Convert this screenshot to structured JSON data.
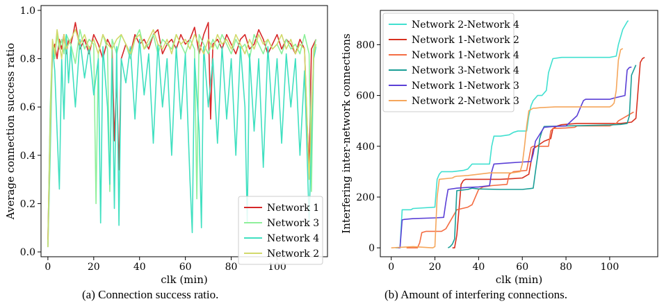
{
  "captions": {
    "a": "(a) Connection success ratio.",
    "b": "(b) Amount of interfering connections."
  },
  "chart_data": [
    {
      "type": "line",
      "title": "",
      "xlabel": "clk (min)",
      "ylabel": "Average connection success ratio",
      "xlim": [
        -3,
        122
      ],
      "ylim": [
        -0.02,
        1.02
      ],
      "xticks": [
        0,
        20,
        40,
        60,
        80,
        100
      ],
      "yticks": [
        0.0,
        0.2,
        0.4,
        0.6,
        0.8,
        1.0
      ],
      "legend_position": "bottom-right",
      "grid": false,
      "series": [
        {
          "name": "Network 1",
          "color": "#d62728",
          "x": [
            0,
            1,
            2,
            3,
            4,
            5,
            6,
            7,
            8,
            9,
            10,
            11,
            12,
            14,
            16,
            18,
            20,
            22,
            24,
            26,
            28,
            29,
            30,
            31,
            32,
            34,
            36,
            38,
            40,
            42,
            44,
            46,
            48,
            50,
            52,
            54,
            56,
            58,
            60,
            62,
            64,
            66,
            68,
            70,
            71,
            72,
            74,
            76,
            78,
            80,
            82,
            84,
            86,
            88,
            90,
            92,
            94,
            96,
            98,
            100,
            102,
            104,
            106,
            108,
            110,
            112,
            113,
            114,
            115,
            116,
            117
          ],
          "y": [
            0.05,
            0.55,
            0.82,
            0.86,
            0.8,
            0.88,
            0.84,
            0.9,
            0.82,
            0.88,
            0.86,
            0.9,
            0.95,
            0.84,
            0.88,
            0.82,
            0.9,
            0.86,
            0.8,
            0.88,
            0.84,
            0.46,
            0.72,
            0.34,
            0.8,
            0.86,
            0.82,
            0.9,
            0.86,
            0.88,
            0.84,
            0.9,
            0.92,
            0.82,
            0.86,
            0.88,
            0.84,
            0.9,
            0.86,
            0.88,
            0.93,
            0.82,
            0.9,
            0.95,
            0.55,
            0.86,
            0.88,
            0.84,
            0.9,
            0.86,
            0.82,
            0.88,
            0.9,
            0.84,
            0.86,
            0.92,
            0.88,
            0.82,
            0.86,
            0.9,
            0.84,
            0.88,
            0.86,
            0.82,
            0.88,
            0.84,
            0.55,
            0.35,
            0.84,
            0.86,
            0.88
          ]
        },
        {
          "name": "Network 3",
          "color": "#8ef09a",
          "x": [
            0,
            1,
            2,
            3,
            4,
            5,
            6,
            7,
            8,
            10,
            12,
            14,
            16,
            18,
            20,
            21,
            22,
            24,
            26,
            27,
            28,
            30,
            32,
            34,
            36,
            38,
            40,
            42,
            44,
            46,
            48,
            50,
            52,
            54,
            56,
            58,
            60,
            62,
            64,
            65,
            66,
            68,
            70,
            72,
            74,
            76,
            78,
            80,
            82,
            84,
            86,
            88,
            90,
            92,
            94,
            96,
            98,
            100,
            102,
            104,
            106,
            108,
            110,
            112,
            114,
            115,
            116,
            117
          ],
          "y": [
            0.03,
            0.6,
            0.86,
            0.8,
            0.9,
            0.84,
            0.88,
            0.82,
            0.9,
            0.86,
            0.78,
            0.92,
            0.84,
            0.88,
            0.86,
            0.2,
            0.82,
            0.9,
            0.84,
            0.25,
            0.88,
            0.82,
            0.9,
            0.86,
            0.8,
            0.88,
            0.92,
            0.84,
            0.86,
            0.9,
            0.82,
            0.88,
            0.86,
            0.84,
            0.9,
            0.86,
            0.82,
            0.88,
            0.84,
            0.22,
            0.9,
            0.86,
            0.82,
            0.88,
            0.84,
            0.9,
            0.86,
            0.82,
            0.88,
            0.84,
            0.86,
            0.8,
            0.9,
            0.86,
            0.82,
            0.88,
            0.84,
            0.86,
            0.82,
            0.88,
            0.84,
            0.86,
            0.82,
            0.9,
            0.82,
            0.25,
            0.84,
            0.88
          ]
        },
        {
          "name": "Network 4",
          "color": "#40e0c0",
          "x": [
            0,
            1,
            2,
            3,
            4,
            5,
            6,
            7,
            8,
            9,
            10,
            12,
            14,
            16,
            18,
            20,
            22,
            23,
            24,
            26,
            27,
            28,
            29,
            30,
            31,
            32,
            34,
            36,
            38,
            40,
            42,
            44,
            46,
            48,
            50,
            52,
            54,
            56,
            58,
            60,
            62,
            63,
            64,
            66,
            67,
            68,
            70,
            72,
            74,
            76,
            78,
            80,
            82,
            84,
            86,
            87,
            88,
            90,
            92,
            94,
            96,
            98,
            100,
            102,
            104,
            106,
            108,
            110,
            112,
            114,
            116,
            117
          ],
          "y": [
            0.02,
            0.4,
            0.85,
            0.75,
            0.5,
            0.26,
            0.8,
            0.55,
            0.9,
            0.7,
            0.85,
            0.6,
            0.88,
            0.72,
            0.85,
            0.65,
            0.8,
            0.12,
            0.85,
            0.6,
            0.28,
            0.8,
            0.18,
            0.85,
            0.11,
            0.8,
            0.7,
            0.85,
            0.55,
            0.88,
            0.65,
            0.82,
            0.45,
            0.86,
            0.6,
            0.8,
            0.4,
            0.85,
            0.55,
            0.82,
            0.3,
            0.08,
            0.8,
            0.5,
            0.1,
            0.85,
            0.6,
            0.8,
            0.45,
            0.85,
            0.55,
            0.8,
            0.4,
            0.85,
            0.6,
            0.12,
            0.82,
            0.5,
            0.8,
            0.35,
            0.85,
            0.55,
            0.8,
            0.45,
            0.82,
            0.6,
            0.8,
            0.4,
            0.75,
            0.13,
            0.8,
            0.85
          ]
        },
        {
          "name": "Network 2",
          "color": "#d2d96b",
          "x": [
            0,
            1,
            2,
            3,
            4,
            5,
            6,
            7,
            8,
            10,
            12,
            14,
            16,
            18,
            20,
            22,
            24,
            26,
            28,
            30,
            32,
            34,
            36,
            38,
            40,
            42,
            44,
            46,
            48,
            50,
            52,
            54,
            56,
            58,
            60,
            62,
            64,
            66,
            68,
            70,
            72,
            74,
            76,
            78,
            80,
            82,
            84,
            86,
            88,
            90,
            92,
            94,
            96,
            98,
            100,
            102,
            104,
            106,
            108,
            110,
            112,
            114,
            116,
            117
          ],
          "y": [
            0.02,
            0.5,
            0.88,
            0.82,
            0.92,
            0.86,
            0.8,
            0.9,
            0.84,
            0.88,
            0.92,
            0.86,
            0.9,
            0.84,
            0.88,
            0.82,
            0.9,
            0.86,
            0.84,
            0.88,
            0.9,
            0.86,
            0.82,
            0.88,
            0.9,
            0.84,
            0.88,
            0.92,
            0.86,
            0.84,
            0.88,
            0.82,
            0.9,
            0.86,
            0.88,
            0.84,
            0.9,
            0.86,
            0.82,
            0.88,
            0.84,
            0.9,
            0.86,
            0.88,
            0.84,
            0.9,
            0.86,
            0.82,
            0.88,
            0.84,
            0.9,
            0.86,
            0.88,
            0.84,
            0.86,
            0.9,
            0.84,
            0.88,
            0.82,
            0.86,
            0.84,
            0.3,
            0.82,
            0.86
          ]
        }
      ]
    },
    {
      "type": "line",
      "title": "",
      "xlabel": "clk (min)",
      "ylabel": "Interfering inter-network connections",
      "xlim": [
        -5,
        122
      ],
      "ylim": [
        -35,
        935
      ],
      "xticks": [
        0,
        20,
        40,
        60,
        80,
        100
      ],
      "yticks": [
        0,
        200,
        400,
        600,
        800
      ],
      "legend_position": "top-left",
      "grid": false,
      "series": [
        {
          "name": "Network 2-Network 4",
          "color": "#40e0d0",
          "x": [
            2,
            4,
            5,
            9,
            10,
            20,
            21,
            22,
            23,
            28,
            33,
            35,
            37,
            45,
            46,
            47,
            50,
            54,
            55,
            56,
            58,
            62,
            63,
            64,
            65,
            66,
            67,
            69,
            71,
            72,
            74,
            78,
            85,
            90,
            100,
            103,
            104,
            106,
            108,
            108.5
          ],
          "y": [
            0,
            0,
            150,
            150,
            155,
            160,
            270,
            290,
            300,
            300,
            305,
            310,
            330,
            330,
            400,
            440,
            440,
            445,
            450,
            455,
            460,
            460,
            520,
            560,
            580,
            590,
            600,
            600,
            620,
            690,
            745,
            750,
            750,
            750,
            750,
            755,
            800,
            860,
            890,
            895
          ]
        },
        {
          "name": "Network 1-Network 2",
          "color": "#d7301f",
          "x": [
            28,
            29,
            30,
            31,
            32,
            33,
            34,
            36,
            45,
            50,
            55,
            60,
            63,
            64,
            65,
            70,
            73,
            74,
            76,
            78,
            85,
            95,
            100,
            105,
            110,
            112,
            113,
            114,
            115,
            116
          ],
          "y": [
            0,
            0,
            50,
            150,
            250,
            265,
            270,
            270,
            270,
            270,
            272,
            275,
            290,
            340,
            390,
            420,
            430,
            470,
            480,
            485,
            490,
            490,
            490,
            490,
            495,
            510,
            620,
            730,
            745,
            750
          ]
        },
        {
          "name": "Network 1-Network 4",
          "color": "#f46d43",
          "x": [
            7,
            8,
            12,
            13,
            14,
            16,
            23,
            24,
            25,
            30,
            35,
            36,
            37,
            40,
            42,
            46,
            53,
            54,
            56,
            62,
            64,
            65,
            72,
            73,
            74,
            80,
            84,
            85,
            100,
            103,
            104,
            108,
            110,
            111
          ],
          "y": [
            0,
            0,
            0,
            20,
            60,
            65,
            65,
            70,
            75,
            150,
            160,
            165,
            170,
            230,
            240,
            245,
            250,
            290,
            300,
            305,
            395,
            400,
            400,
            460,
            470,
            472,
            475,
            480,
            480,
            490,
            500,
            520,
            530,
            535
          ]
        },
        {
          "name": "Network 3-Network 4",
          "color": "#1a9e96",
          "x": [
            26,
            27,
            28,
            29,
            30,
            35,
            37,
            40,
            50,
            56,
            60,
            65,
            66,
            67,
            68,
            69,
            70,
            80,
            90,
            100,
            105,
            108,
            109,
            110,
            112
          ],
          "y": [
            0,
            5,
            15,
            35,
            225,
            230,
            235,
            232,
            230,
            230,
            230,
            235,
            300,
            360,
            430,
            460,
            478,
            480,
            482,
            484,
            486,
            490,
            520,
            680,
            720
          ]
        },
        {
          "name": "Network 1-Network 3",
          "color": "#5a3fd6",
          "x": [
            3,
            4,
            5,
            6,
            10,
            20,
            24,
            25,
            26,
            30,
            35,
            40,
            45,
            46,
            47,
            50,
            55,
            60,
            64,
            65,
            66,
            70,
            74,
            80,
            85,
            87,
            88,
            89,
            95,
            100,
            102,
            107,
            108,
            109,
            110
          ],
          "y": [
            0,
            0,
            110,
            112,
            115,
            118,
            120,
            180,
            230,
            235,
            238,
            240,
            245,
            300,
            330,
            332,
            335,
            338,
            340,
            370,
            420,
            475,
            478,
            480,
            520,
            560,
            580,
            585,
            585,
            585,
            590,
            600,
            700,
            710,
            712
          ]
        },
        {
          "name": "Network 2-Network 3",
          "color": "#f5a65b",
          "x": [
            0,
            10,
            19,
            20,
            21,
            22,
            28,
            29,
            30,
            35,
            40,
            45,
            55,
            59,
            60,
            61,
            62,
            63,
            64,
            65,
            66,
            68,
            75,
            85,
            95,
            100,
            101,
            102,
            103,
            104,
            105,
            106
          ],
          "y": [
            0,
            5,
            0,
            5,
            200,
            270,
            275,
            280,
            282,
            285,
            290,
            295,
            295,
            300,
            330,
            400,
            480,
            540,
            545,
            550,
            550,
            552,
            555,
            555,
            555,
            555,
            560,
            570,
            620,
            740,
            780,
            785
          ]
        }
      ]
    }
  ]
}
